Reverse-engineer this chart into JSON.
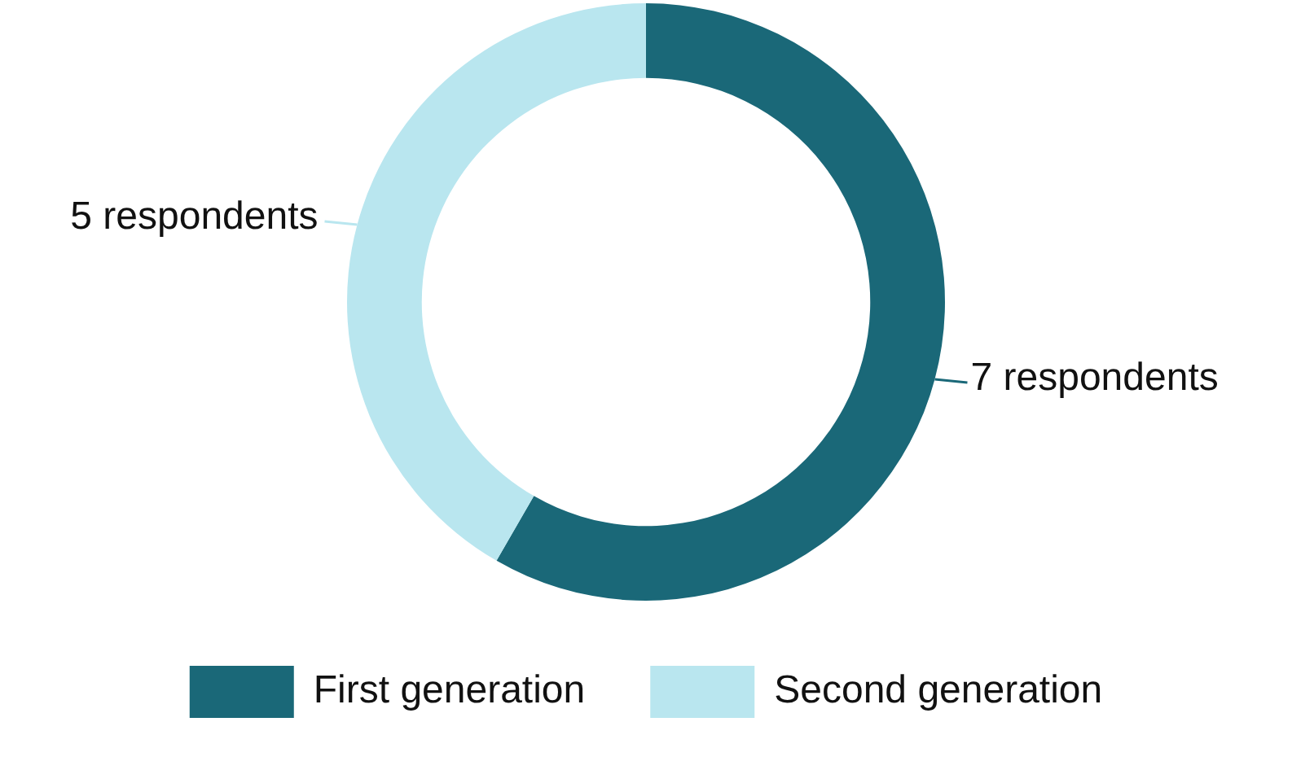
{
  "chart_data": {
    "type": "donut",
    "categories": [
      "First generation",
      "Second generation"
    ],
    "values": [
      7,
      5
    ],
    "colors": [
      "#1a6878",
      "#b9e6ef"
    ],
    "value_labels": [
      "7 respondents",
      "5 respondents"
    ],
    "legend": "bottom"
  }
}
